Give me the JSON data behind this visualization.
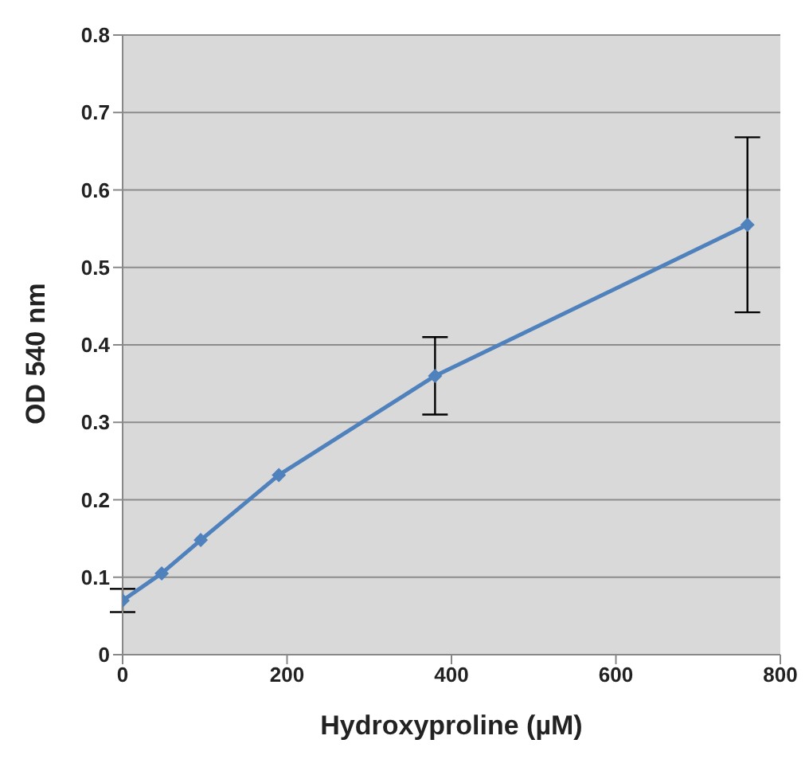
{
  "chart_data": {
    "type": "line",
    "xlabel": "Hydroxyproline (µM)",
    "ylabel": "OD 540 nm",
    "x": [
      0,
      47.5,
      95,
      190,
      380,
      760
    ],
    "series": [
      {
        "color": "#4f81bd",
        "values": [
          0.07,
          0.105,
          0.148,
          0.232,
          0.36,
          0.555
        ],
        "errors": [
          0.015,
          null,
          null,
          null,
          0.05,
          0.113
        ]
      }
    ],
    "xlim": [
      0,
      800
    ],
    "xticks": [
      0,
      200,
      400,
      600,
      800
    ],
    "ylim": [
      0,
      0.8
    ],
    "yticks": [
      0,
      0.1,
      0.2,
      0.3,
      0.4,
      0.5,
      0.6,
      0.7,
      0.8
    ],
    "grid": "y",
    "marker": "diamond",
    "line_style": "solid"
  }
}
